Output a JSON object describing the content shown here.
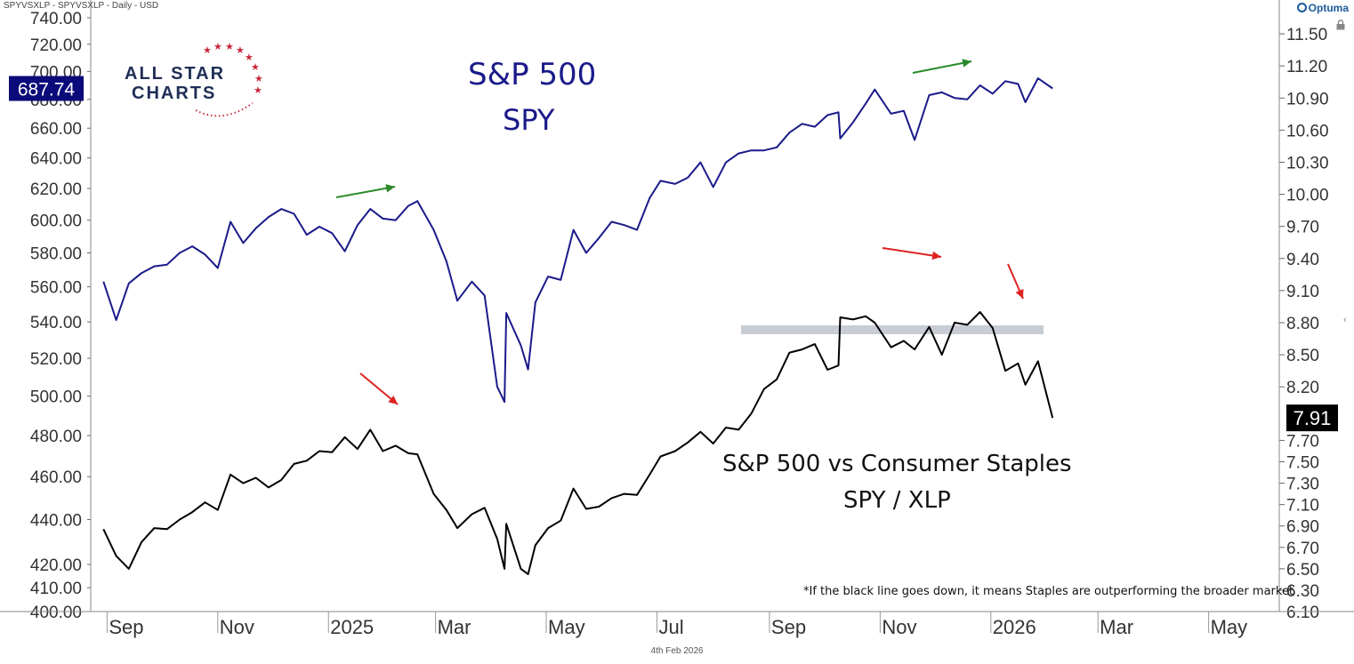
{
  "header": {
    "symbol_line": "SPYVSXLP - SPYVSXLP - Daily - USD"
  },
  "footer": {
    "date": "4th Feb 2026"
  },
  "branding": {
    "optuma": "Optuma",
    "logo_line1": "ALL STAR",
    "logo_line2": "CHARTS"
  },
  "annotations": {
    "spy_title": "S&P 500",
    "spy_sub": "SPY",
    "ratio_title": "S&P 500 vs Consumer Staples",
    "ratio_sub": "SPY / XLP",
    "note": "*If the black line goes down, it means Staples are outperforming the broader market"
  },
  "colors": {
    "spy_line": "#1a1a8a",
    "ratio_line": "#000000",
    "up_arrow": "#2a8a2a",
    "down_arrow": "#dd2222",
    "support": "#c8ccd4"
  },
  "chart_data": {
    "type": "line",
    "x_ticks": [
      "Sep",
      "Nov",
      "2025",
      "Mar",
      "May",
      "Jul",
      "Sep",
      "Nov",
      "2026",
      "Mar",
      "May"
    ],
    "left_axis": {
      "scale": "log",
      "ylim": [
        400,
        740
      ],
      "ticks": [
        "740.00",
        "720.00",
        "700.00",
        "680.00",
        "660.00",
        "640.00",
        "620.00",
        "600.00",
        "580.00",
        "560.00",
        "540.00",
        "520.00",
        "500.00",
        "480.00",
        "460.00",
        "440.00",
        "420.00",
        "410.00",
        "400.00"
      ],
      "last_value": "687.74"
    },
    "right_axis": {
      "ylim": [
        6.1,
        11.65
      ],
      "ticks": [
        "11.50",
        "11.20",
        "10.90",
        "10.60",
        "10.30",
        "10.00",
        "9.70",
        "9.40",
        "9.10",
        "8.80",
        "8.50",
        "8.20",
        "7.91",
        "7.70",
        "7.50",
        "7.30",
        "7.10",
        "6.90",
        "6.70",
        "6.50",
        "6.30",
        "6.10"
      ],
      "last_value": "7.91"
    },
    "series": [
      {
        "name": "SPY",
        "axis": "left",
        "points": [
          [
            "2024-08-30",
            563
          ],
          [
            "2024-09-06",
            541
          ],
          [
            "2024-09-13",
            562
          ],
          [
            "2024-09-20",
            568
          ],
          [
            "2024-09-27",
            572
          ],
          [
            "2024-10-04",
            573
          ],
          [
            "2024-10-11",
            580
          ],
          [
            "2024-10-18",
            584
          ],
          [
            "2024-10-25",
            579
          ],
          [
            "2024-11-01",
            571
          ],
          [
            "2024-11-08",
            599
          ],
          [
            "2024-11-15",
            586
          ],
          [
            "2024-11-22",
            595
          ],
          [
            "2024-11-29",
            602
          ],
          [
            "2024-12-06",
            607
          ],
          [
            "2024-12-13",
            604
          ],
          [
            "2024-12-20",
            591
          ],
          [
            "2024-12-27",
            596
          ],
          [
            "2025-01-03",
            592
          ],
          [
            "2025-01-10",
            581
          ],
          [
            "2025-01-17",
            597
          ],
          [
            "2025-01-24",
            607
          ],
          [
            "2025-01-31",
            601
          ],
          [
            "2025-02-07",
            600
          ],
          [
            "2025-02-14",
            609
          ],
          [
            "2025-02-19",
            612
          ],
          [
            "2025-02-28",
            594
          ],
          [
            "2025-03-07",
            575
          ],
          [
            "2025-03-13",
            552
          ],
          [
            "2025-03-21",
            563
          ],
          [
            "2025-03-28",
            555
          ],
          [
            "2025-04-04",
            505
          ],
          [
            "2025-04-08",
            497
          ],
          [
            "2025-04-09",
            545
          ],
          [
            "2025-04-17",
            527
          ],
          [
            "2025-04-21",
            514
          ],
          [
            "2025-04-25",
            551
          ],
          [
            "2025-05-02",
            566
          ],
          [
            "2025-05-09",
            564
          ],
          [
            "2025-05-16",
            594
          ],
          [
            "2025-05-23",
            580
          ],
          [
            "2025-05-30",
            589
          ],
          [
            "2025-06-06",
            599
          ],
          [
            "2025-06-13",
            597
          ],
          [
            "2025-06-20",
            594
          ],
          [
            "2025-06-27",
            614
          ],
          [
            "2025-07-03",
            625
          ],
          [
            "2025-07-11",
            623
          ],
          [
            "2025-07-18",
            627
          ],
          [
            "2025-07-25",
            637
          ],
          [
            "2025-08-01",
            621
          ],
          [
            "2025-08-08",
            637
          ],
          [
            "2025-08-15",
            643
          ],
          [
            "2025-08-22",
            645
          ],
          [
            "2025-08-29",
            645
          ],
          [
            "2025-09-05",
            647
          ],
          [
            "2025-09-12",
            657
          ],
          [
            "2025-09-19",
            663
          ],
          [
            "2025-09-26",
            661
          ],
          [
            "2025-10-03",
            669
          ],
          [
            "2025-10-09",
            671
          ],
          [
            "2025-10-10",
            653
          ],
          [
            "2025-10-17",
            664
          ],
          [
            "2025-10-24",
            677
          ],
          [
            "2025-10-29",
            687
          ],
          [
            "2025-11-07",
            670
          ],
          [
            "2025-11-14",
            672
          ],
          [
            "2025-11-20",
            652
          ],
          [
            "2025-11-28",
            683
          ],
          [
            "2025-12-05",
            685
          ],
          [
            "2025-12-12",
            681
          ],
          [
            "2025-12-19",
            680
          ],
          [
            "2025-12-26",
            690
          ],
          [
            "2026-01-02",
            684
          ],
          [
            "2026-01-09",
            693
          ],
          [
            "2026-01-16",
            691
          ],
          [
            "2026-01-20",
            678
          ],
          [
            "2026-01-27",
            695
          ],
          [
            "2026-02-04",
            687.74
          ]
        ]
      },
      {
        "name": "SPY / XLP",
        "axis": "right",
        "points": [
          [
            "2024-08-30",
            6.87
          ],
          [
            "2024-09-06",
            6.62
          ],
          [
            "2024-09-13",
            6.5
          ],
          [
            "2024-09-20",
            6.75
          ],
          [
            "2024-09-27",
            6.88
          ],
          [
            "2024-10-04",
            6.87
          ],
          [
            "2024-10-11",
            6.96
          ],
          [
            "2024-10-18",
            7.03
          ],
          [
            "2024-10-25",
            7.12
          ],
          [
            "2024-11-01",
            7.05
          ],
          [
            "2024-11-08",
            7.38
          ],
          [
            "2024-11-15",
            7.3
          ],
          [
            "2024-11-22",
            7.35
          ],
          [
            "2024-11-29",
            7.26
          ],
          [
            "2024-12-06",
            7.33
          ],
          [
            "2024-12-13",
            7.48
          ],
          [
            "2024-12-20",
            7.51
          ],
          [
            "2024-12-27",
            7.6
          ],
          [
            "2025-01-03",
            7.59
          ],
          [
            "2025-01-10",
            7.73
          ],
          [
            "2025-01-17",
            7.62
          ],
          [
            "2025-01-24",
            7.8
          ],
          [
            "2025-01-31",
            7.6
          ],
          [
            "2025-02-07",
            7.65
          ],
          [
            "2025-02-14",
            7.58
          ],
          [
            "2025-02-19",
            7.57
          ],
          [
            "2025-02-28",
            7.2
          ],
          [
            "2025-03-07",
            7.05
          ],
          [
            "2025-03-13",
            6.88
          ],
          [
            "2025-03-21",
            7.01
          ],
          [
            "2025-03-28",
            7.07
          ],
          [
            "2025-04-04",
            6.78
          ],
          [
            "2025-04-08",
            6.5
          ],
          [
            "2025-04-09",
            6.92
          ],
          [
            "2025-04-17",
            6.5
          ],
          [
            "2025-04-21",
            6.45
          ],
          [
            "2025-04-25",
            6.72
          ],
          [
            "2025-05-02",
            6.88
          ],
          [
            "2025-05-09",
            6.95
          ],
          [
            "2025-05-16",
            7.25
          ],
          [
            "2025-05-23",
            7.06
          ],
          [
            "2025-05-30",
            7.08
          ],
          [
            "2025-06-06",
            7.16
          ],
          [
            "2025-06-13",
            7.2
          ],
          [
            "2025-06-20",
            7.19
          ],
          [
            "2025-06-27",
            7.38
          ],
          [
            "2025-07-03",
            7.55
          ],
          [
            "2025-07-11",
            7.6
          ],
          [
            "2025-07-18",
            7.68
          ],
          [
            "2025-07-25",
            7.78
          ],
          [
            "2025-08-01",
            7.67
          ],
          [
            "2025-08-08",
            7.82
          ],
          [
            "2025-08-15",
            7.8
          ],
          [
            "2025-08-22",
            7.95
          ],
          [
            "2025-08-29",
            8.18
          ],
          [
            "2025-09-05",
            8.27
          ],
          [
            "2025-09-12",
            8.52
          ],
          [
            "2025-09-19",
            8.55
          ],
          [
            "2025-09-26",
            8.6
          ],
          [
            "2025-10-03",
            8.36
          ],
          [
            "2025-10-09",
            8.4
          ],
          [
            "2025-10-10",
            8.85
          ],
          [
            "2025-10-17",
            8.83
          ],
          [
            "2025-10-24",
            8.86
          ],
          [
            "2025-10-29",
            8.8
          ],
          [
            "2025-11-07",
            8.57
          ],
          [
            "2025-11-14",
            8.63
          ],
          [
            "2025-11-20",
            8.55
          ],
          [
            "2025-11-28",
            8.76
          ],
          [
            "2025-12-05",
            8.5
          ],
          [
            "2025-12-12",
            8.8
          ],
          [
            "2025-12-19",
            8.78
          ],
          [
            "2025-12-26",
            8.9
          ],
          [
            "2026-01-02",
            8.75
          ],
          [
            "2026-01-09",
            8.35
          ],
          [
            "2026-01-16",
            8.42
          ],
          [
            "2026-01-20",
            8.22
          ],
          [
            "2026-01-27",
            8.44
          ],
          [
            "2026-02-04",
            7.91
          ]
        ]
      }
    ]
  }
}
